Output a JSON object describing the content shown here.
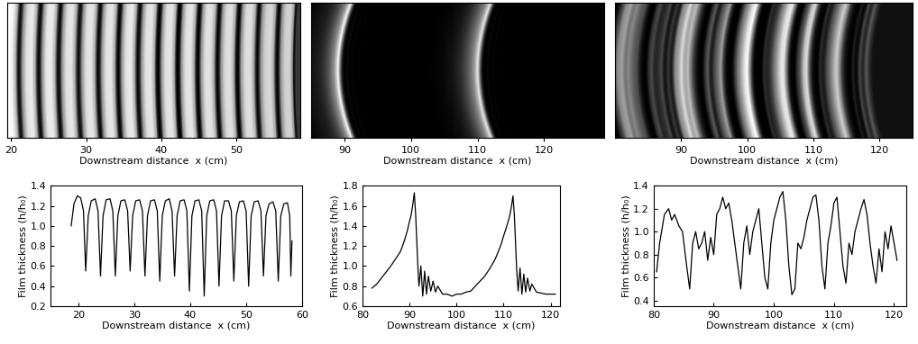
{
  "chart_data": [
    {
      "type": "image",
      "x_label": "Downstream distance  x (cm)",
      "xlim": [
        19.5,
        58.5
      ],
      "xticks": [
        20,
        30,
        40,
        50
      ],
      "tick_labels": "x"
    },
    {
      "type": "image",
      "x_label": "Downstream distance  x (cm)",
      "xlim": [
        85,
        129
      ],
      "xticks": [
        90,
        100,
        110,
        120
      ],
      "tick_labels": "x"
    },
    {
      "type": "image",
      "x_label": "Downstream distance  x (cm)",
      "xlim": [
        80,
        125
      ],
      "xticks": [
        90,
        100,
        110,
        120
      ],
      "tick_labels": "x"
    },
    {
      "type": "line",
      "x_label": "Downstream distance  x (cm)",
      "y_label": "Film thickness (h/h₀)",
      "xlim": [
        15,
        60
      ],
      "xticks": [
        20,
        30,
        40,
        50,
        60
      ],
      "ylim": [
        0.2,
        1.4
      ],
      "yticks": [
        0.2,
        0.4,
        0.6,
        0.8,
        {
          "value": 1,
          "label": "1.0"
        },
        1.2,
        1.4
      ],
      "color": "#000000",
      "x": [
        18.7,
        19.2,
        19.8,
        20.4,
        20.9,
        21.3,
        21.75,
        22.3,
        23.0,
        23.5,
        23.95,
        24.4,
        24.95,
        25.65,
        26.15,
        26.6,
        27.05,
        27.6,
        28.3,
        28.8,
        29.25,
        29.7,
        30.25,
        30.95,
        31.45,
        31.9,
        32.35,
        32.9,
        33.6,
        34.1,
        34.55,
        35.0,
        35.55,
        36.25,
        36.75,
        37.2,
        37.65,
        38.2,
        38.9,
        39.4,
        39.85,
        40.3,
        40.85,
        41.55,
        42.05,
        42.5,
        42.95,
        43.5,
        44.2,
        44.7,
        45.15,
        45.6,
        46.15,
        46.85,
        47.35,
        47.8,
        48.25,
        48.8,
        49.5,
        50.0,
        50.45,
        50.9,
        51.45,
        52.15,
        52.65,
        53.1,
        53.55,
        54.1,
        54.8,
        55.3,
        55.75,
        56.2,
        56.75,
        57.4,
        57.8,
        58.0,
        58.2
      ],
      "values": [
        1.0,
        1.22,
        1.3,
        1.28,
        1.15,
        0.55,
        1.1,
        1.25,
        1.27,
        1.15,
        0.5,
        1.1,
        1.26,
        1.27,
        1.15,
        0.5,
        1.1,
        1.25,
        1.26,
        1.15,
        0.55,
        1.1,
        1.25,
        1.26,
        1.15,
        0.5,
        1.1,
        1.25,
        1.26,
        1.15,
        0.45,
        1.1,
        1.25,
        1.27,
        1.15,
        0.5,
        1.1,
        1.25,
        1.26,
        1.15,
        0.35,
        1.1,
        1.25,
        1.26,
        1.15,
        0.3,
        1.1,
        1.25,
        1.26,
        1.15,
        0.4,
        1.1,
        1.25,
        1.25,
        1.15,
        0.45,
        1.1,
        1.24,
        1.25,
        1.15,
        0.4,
        1.1,
        1.24,
        1.25,
        1.15,
        0.5,
        1.1,
        1.22,
        1.24,
        1.15,
        0.45,
        1.1,
        1.22,
        1.23,
        1.1,
        0.5,
        0.85
      ]
    },
    {
      "type": "line",
      "x_label": "Downstream distance  x (cm)",
      "y_label": "Film thickness (h/h₀)",
      "xlim": [
        80,
        122
      ],
      "xticks": [
        80,
        90,
        100,
        110,
        120
      ],
      "ylim": [
        0.6,
        1.8
      ],
      "yticks": [
        0.6,
        0.8,
        {
          "value": 1,
          "label": "1.0"
        },
        1.2,
        1.4,
        1.6,
        1.8
      ],
      "color": "#000000",
      "x": [
        82,
        83,
        84,
        85,
        86,
        87,
        88,
        88.5,
        89,
        89.5,
        90,
        90.3,
        90.7,
        91,
        91.3,
        91.8,
        92.0,
        92.4,
        92.8,
        93.2,
        93.6,
        94.0,
        94.5,
        95,
        95.5,
        96,
        97,
        98,
        99,
        100,
        101,
        102,
        103,
        104,
        105,
        106,
        107,
        108,
        108.5,
        109,
        109.5,
        110,
        110.5,
        111,
        111.3,
        111.7,
        112,
        112.3,
        112.8,
        113.1,
        113.5,
        113.9,
        114.3,
        114.7,
        115.1,
        115.6,
        116,
        117,
        118,
        119,
        120,
        121
      ],
      "values": [
        0.78,
        0.82,
        0.88,
        0.94,
        1.0,
        1.07,
        1.14,
        1.2,
        1.27,
        1.35,
        1.45,
        1.5,
        1.62,
        1.73,
        1.5,
        0.95,
        0.8,
        1.0,
        0.7,
        0.95,
        0.72,
        0.9,
        0.75,
        0.85,
        0.74,
        0.8,
        0.72,
        0.72,
        0.7,
        0.72,
        0.72,
        0.74,
        0.75,
        0.8,
        0.85,
        0.9,
        0.97,
        1.05,
        1.1,
        1.16,
        1.22,
        1.3,
        1.37,
        1.45,
        1.5,
        1.6,
        1.7,
        1.5,
        0.95,
        0.75,
        0.98,
        0.72,
        0.92,
        0.74,
        0.88,
        0.75,
        0.82,
        0.74,
        0.73,
        0.72,
        0.72,
        0.72
      ]
    },
    {
      "type": "line",
      "x_label": "Downstream distance  x (cm)",
      "y_label": "Film thickness (h/h₀)",
      "xlim": [
        80,
        122
      ],
      "xticks": [
        80,
        90,
        100,
        110,
        120
      ],
      "ylim": [
        0.35,
        1.4
      ],
      "yticks": [
        0.4,
        0.6,
        0.8,
        {
          "value": 1,
          "label": "1.0"
        },
        1.2,
        1.4
      ],
      "color": "#000000",
      "x": [
        80.5,
        81,
        81.8,
        82.5,
        83,
        83.5,
        84.2,
        84.8,
        85.5,
        86,
        86.5,
        87,
        87.5,
        88,
        88.5,
        89,
        89.5,
        90,
        90.5,
        91,
        91.5,
        92,
        92.5,
        93,
        93.5,
        94,
        94.5,
        95,
        95.5,
        96,
        96.5,
        97,
        97.5,
        98,
        98.5,
        99,
        99.5,
        100,
        100.5,
        101,
        101.5,
        102,
        102.5,
        103,
        103.5,
        104,
        104.5,
        105,
        105.5,
        106,
        106.5,
        107,
        107.5,
        108,
        108.5,
        109,
        109.5,
        110,
        110.5,
        111,
        111.5,
        112,
        112.5,
        113,
        113.5,
        114,
        114.5,
        115,
        115.5,
        116,
        116.5,
        117,
        117.5,
        118,
        118.5,
        119,
        119.5,
        120,
        120.5
      ],
      "values": [
        0.65,
        0.9,
        1.15,
        1.2,
        1.1,
        1.15,
        1.05,
        1.0,
        0.7,
        0.5,
        0.9,
        1.0,
        0.85,
        0.9,
        1.0,
        0.75,
        0.95,
        0.8,
        1.15,
        1.2,
        1.3,
        1.2,
        1.25,
        1.1,
        0.9,
        0.7,
        0.5,
        0.9,
        1.05,
        0.8,
        1.0,
        1.1,
        1.2,
        0.9,
        0.6,
        0.5,
        0.9,
        1.1,
        1.2,
        1.3,
        1.35,
        1.1,
        0.7,
        0.45,
        0.5,
        0.9,
        0.85,
        0.95,
        1.1,
        1.2,
        1.3,
        1.32,
        1.1,
        0.7,
        0.5,
        0.9,
        1.05,
        1.25,
        1.3,
        1.0,
        0.7,
        0.55,
        0.9,
        0.8,
        1.0,
        1.1,
        1.2,
        1.28,
        1.15,
        0.9,
        0.7,
        0.55,
        0.85,
        0.65,
        1.0,
        0.85,
        1.05,
        0.9,
        0.75
      ]
    }
  ]
}
